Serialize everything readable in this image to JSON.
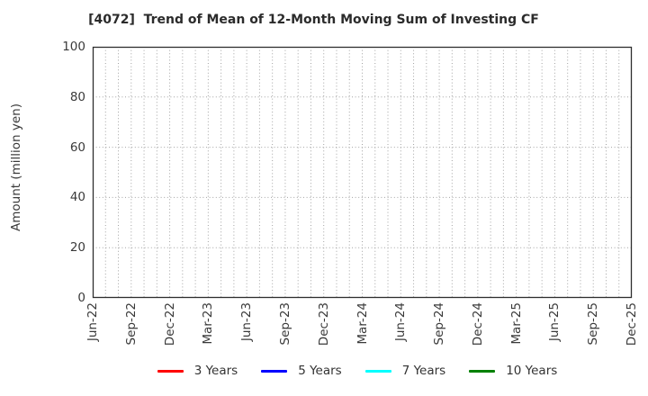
{
  "figure": {
    "title": "[4072]  Trend of Mean of 12-Month Moving Sum of Investing CF"
  },
  "chart_data": {
    "type": "line",
    "title": "[4072]  Trend of Mean of 12-Month Moving Sum of Investing CF",
    "xlabel": "",
    "ylabel": "Amount (million yen)",
    "ylim": [
      0,
      100
    ],
    "yticks": [
      0,
      20,
      40,
      60,
      80,
      100
    ],
    "x_tick_labels": [
      "Jun-22",
      "Sep-22",
      "Dec-22",
      "Mar-23",
      "Jun-23",
      "Sep-23",
      "Dec-23",
      "Mar-24",
      "Jun-24",
      "Sep-24",
      "Dec-24",
      "Mar-25",
      "Jun-25",
      "Sep-25",
      "Dec-25"
    ],
    "x_months_between_labels": 3,
    "grid": {
      "style": "dotted",
      "color": "#a3a3a3",
      "vertical_interval": "monthly",
      "horizontal_at": [
        20,
        40,
        60,
        80
      ]
    },
    "legend_position": "bottom",
    "series": [
      {
        "name": "3 Years",
        "color": "#ff0000",
        "values": []
      },
      {
        "name": "5 Years",
        "color": "#0000ff",
        "values": []
      },
      {
        "name": "7 Years",
        "color": "#00ffff",
        "values": []
      },
      {
        "name": "10 Years",
        "color": "#008000",
        "values": []
      }
    ]
  }
}
